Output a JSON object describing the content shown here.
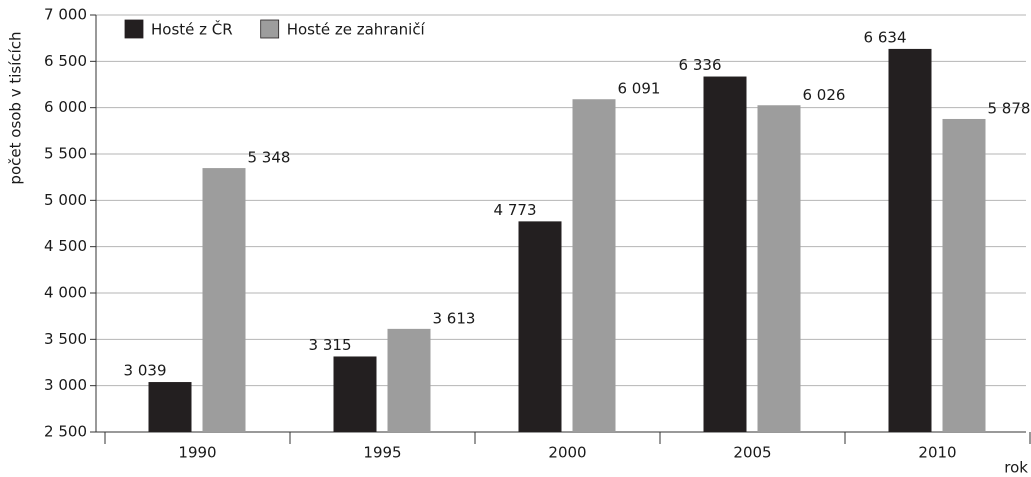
{
  "chart_data": {
    "type": "bar",
    "y_label": "počet osob v tisících",
    "x_label": "rok",
    "categories": [
      "1990",
      "1995",
      "2000",
      "2005",
      "2010"
    ],
    "series": [
      {
        "name": "Hosté z ČR",
        "color": "#231f20",
        "values": [
          3039,
          3315,
          4773,
          6336,
          6634
        ],
        "value_labels": [
          "3 039",
          "3 315",
          "4 773",
          "6 336",
          "6 634"
        ]
      },
      {
        "name": "Hosté ze zahraničí",
        "color": "#9d9d9d",
        "values": [
          5348,
          3613,
          6091,
          6026,
          5878
        ],
        "value_labels": [
          "5 348",
          "3 613",
          "6 091",
          "6 026",
          "5 878"
        ]
      }
    ],
    "ylim": [
      2500,
      7000
    ],
    "yticks": [
      {
        "value": 2500,
        "label": "2 500"
      },
      {
        "value": 3000,
        "label": "3 000"
      },
      {
        "value": 3500,
        "label": "3 500"
      },
      {
        "value": 4000,
        "label": "4 000"
      },
      {
        "value": 4500,
        "label": "4 500"
      },
      {
        "value": 5000,
        "label": "5 000"
      },
      {
        "value": 5500,
        "label": "5 500"
      },
      {
        "value": 6000,
        "label": "6 000"
      },
      {
        "value": 6500,
        "label": "6 500"
      },
      {
        "value": 7000,
        "label": "7 000"
      }
    ],
    "grid": true,
    "legend": "top-left"
  }
}
